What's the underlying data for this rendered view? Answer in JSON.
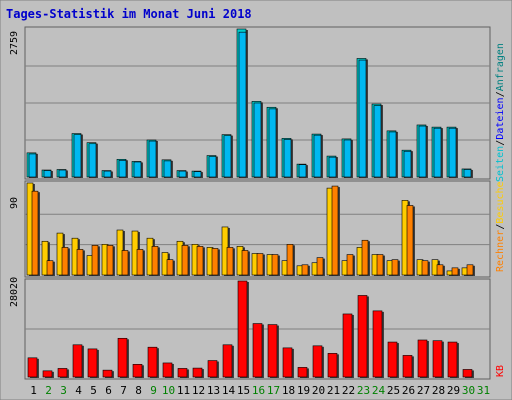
{
  "colors": {
    "frame_bg": "#c0c0c0",
    "panel_bg": "#c0c0c0",
    "grid": "#808080",
    "title": "#0000cc",
    "anfragen": "#00cccc",
    "dateien": "#0000ff",
    "seiten": "#00c0d0",
    "besuche": "#ffcc00",
    "rechner": "#ff8000",
    "kb": "#ff0000",
    "weekday_label": "#000000",
    "weekend_label": "#008000"
  },
  "chart_data": [
    {
      "type": "bar",
      "title": "Tages-Statistik im Monat Juni 2018",
      "panel": "hits",
      "ymax_label": "2759",
      "ylim": [
        0,
        2759
      ],
      "right_label": [
        "Anfragen",
        "Dateien",
        "Seiten"
      ],
      "categories": [
        "1",
        "2",
        "3",
        "4",
        "5",
        "6",
        "7",
        "8",
        "9",
        "10",
        "11",
        "12",
        "13",
        "14",
        "15",
        "16",
        "17",
        "18",
        "19",
        "20",
        "21",
        "22",
        "23",
        "24",
        "25",
        "26",
        "27",
        "28",
        "29",
        "30",
        "31"
      ],
      "series": [
        {
          "name": "Anfragen",
          "values": [
            450,
            130,
            140,
            810,
            640,
            120,
            330,
            290,
            690,
            320,
            120,
            110,
            400,
            790,
            2759,
            1410,
            1300,
            720,
            240,
            800,
            390,
            710,
            2210,
            1360,
            860,
            500,
            970,
            930,
            930,
            150,
            0
          ]
        },
        {
          "name": "Dateien",
          "values": [
            430,
            120,
            130,
            790,
            620,
            110,
            310,
            280,
            670,
            300,
            110,
            100,
            380,
            770,
            2700,
            1380,
            1270,
            700,
            230,
            780,
            370,
            690,
            2180,
            1330,
            840,
            480,
            950,
            910,
            910,
            140,
            0
          ]
        },
        {
          "name": "Seiten",
          "values": [
            0,
            0,
            0,
            0,
            0,
            0,
            0,
            0,
            0,
            0,
            0,
            0,
            0,
            0,
            0,
            0,
            0,
            0,
            0,
            0,
            0,
            0,
            0,
            0,
            0,
            0,
            0,
            0,
            0,
            0,
            0
          ]
        }
      ]
    },
    {
      "type": "bar",
      "panel": "visits",
      "ymax_label": "90",
      "ylim": [
        0,
        90
      ],
      "right_label": [
        "Rechner",
        "Besuche"
      ],
      "categories": [
        "1",
        "2",
        "3",
        "4",
        "5",
        "6",
        "7",
        "8",
        "9",
        "10",
        "11",
        "12",
        "13",
        "14",
        "15",
        "16",
        "17",
        "18",
        "19",
        "20",
        "21",
        "22",
        "23",
        "24",
        "25",
        "26",
        "27",
        "28",
        "29",
        "30",
        "31"
      ],
      "series": [
        {
          "name": "Besuche",
          "values": [
            90,
            33,
            41,
            36,
            19,
            30,
            44,
            43,
            36,
            22,
            33,
            30,
            27,
            47,
            28,
            21,
            20,
            14,
            9,
            12,
            85,
            14,
            27,
            20,
            14,
            73,
            15,
            15,
            4,
            7,
            0
          ]
        },
        {
          "name": "Rechner",
          "values": [
            82,
            14,
            27,
            25,
            29,
            29,
            24,
            25,
            28,
            15,
            29,
            28,
            26,
            27,
            24,
            21,
            20,
            30,
            10,
            17,
            87,
            20,
            34,
            20,
            15,
            68,
            14,
            10,
            7,
            10,
            0
          ]
        }
      ]
    },
    {
      "type": "bar",
      "panel": "traffic",
      "ymax_label": "28020",
      "ylim": [
        0,
        28020
      ],
      "right_label": [
        "KB"
      ],
      "categories": [
        "1",
        "2",
        "3",
        "4",
        "5",
        "6",
        "7",
        "8",
        "9",
        "10",
        "11",
        "12",
        "13",
        "14",
        "15",
        "16",
        "17",
        "18",
        "19",
        "20",
        "21",
        "22",
        "23",
        "24",
        "25",
        "26",
        "27",
        "28",
        "29",
        "30",
        "31"
      ],
      "series": [
        {
          "name": "KB",
          "values": [
            5600,
            1800,
            2500,
            9400,
            8200,
            2000,
            11300,
            3700,
            8700,
            4100,
            2500,
            2600,
            4800,
            9400,
            28020,
            15600,
            15300,
            8500,
            2800,
            9100,
            6900,
            18400,
            23800,
            19300,
            10200,
            6300,
            10800,
            10600,
            10200,
            2200,
            0
          ]
        }
      ]
    }
  ],
  "x_labels": [
    {
      "t": "1",
      "weekend": false
    },
    {
      "t": "2",
      "weekend": true
    },
    {
      "t": "3",
      "weekend": true
    },
    {
      "t": "4",
      "weekend": false
    },
    {
      "t": "5",
      "weekend": false
    },
    {
      "t": "6",
      "weekend": false
    },
    {
      "t": "7",
      "weekend": false
    },
    {
      "t": "8",
      "weekend": false
    },
    {
      "t": "9",
      "weekend": true
    },
    {
      "t": "10",
      "weekend": true
    },
    {
      "t": "11",
      "weekend": false
    },
    {
      "t": "12",
      "weekend": false
    },
    {
      "t": "13",
      "weekend": false
    },
    {
      "t": "14",
      "weekend": false
    },
    {
      "t": "15",
      "weekend": false
    },
    {
      "t": "16",
      "weekend": true
    },
    {
      "t": "17",
      "weekend": true
    },
    {
      "t": "18",
      "weekend": false
    },
    {
      "t": "19",
      "weekend": false
    },
    {
      "t": "20",
      "weekend": false
    },
    {
      "t": "21",
      "weekend": false
    },
    {
      "t": "22",
      "weekend": false
    },
    {
      "t": "23",
      "weekend": true
    },
    {
      "t": "24",
      "weekend": true
    },
    {
      "t": "25",
      "weekend": false
    },
    {
      "t": "26",
      "weekend": false
    },
    {
      "t": "27",
      "weekend": false
    },
    {
      "t": "28",
      "weekend": false
    },
    {
      "t": "29",
      "weekend": false
    },
    {
      "t": "30",
      "weekend": true
    },
    {
      "t": "31",
      "weekend": true
    }
  ]
}
